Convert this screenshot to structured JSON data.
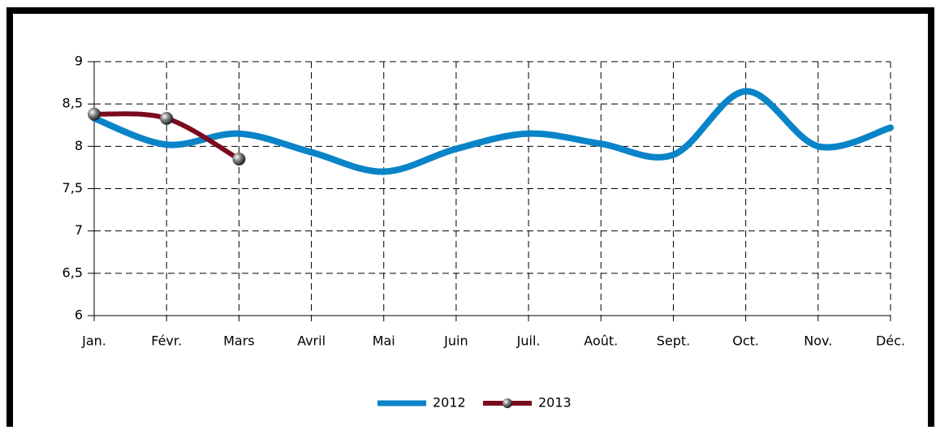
{
  "chart_data": {
    "type": "line",
    "categories": [
      "Jan.",
      "Févr.",
      "Mars",
      "Avril",
      "Mai",
      "Juin",
      "Juil.",
      "Août.",
      "Sept.",
      "Oct.",
      "Nov.",
      "Déc."
    ],
    "series": [
      {
        "name": "2012",
        "color": "#0a84c8",
        "values": [
          8.33,
          8.02,
          8.15,
          7.93,
          7.7,
          7.97,
          8.15,
          8.03,
          7.9,
          8.65,
          8.0,
          8.22
        ]
      },
      {
        "name": "2013",
        "color": "#7b0a1e",
        "markers": true,
        "values": [
          8.38,
          8.33,
          7.85,
          null,
          null,
          null,
          null,
          null,
          null,
          null,
          null,
          null
        ]
      }
    ],
    "ylim": [
      6,
      9
    ],
    "yticks": [
      6,
      {
        "value": 6.5,
        "label": "6,5"
      },
      7,
      {
        "value": 7.5,
        "label": "7,5"
      },
      8,
      {
        "value": 8.5,
        "label": "8,5"
      },
      9
    ],
    "grid": true
  }
}
